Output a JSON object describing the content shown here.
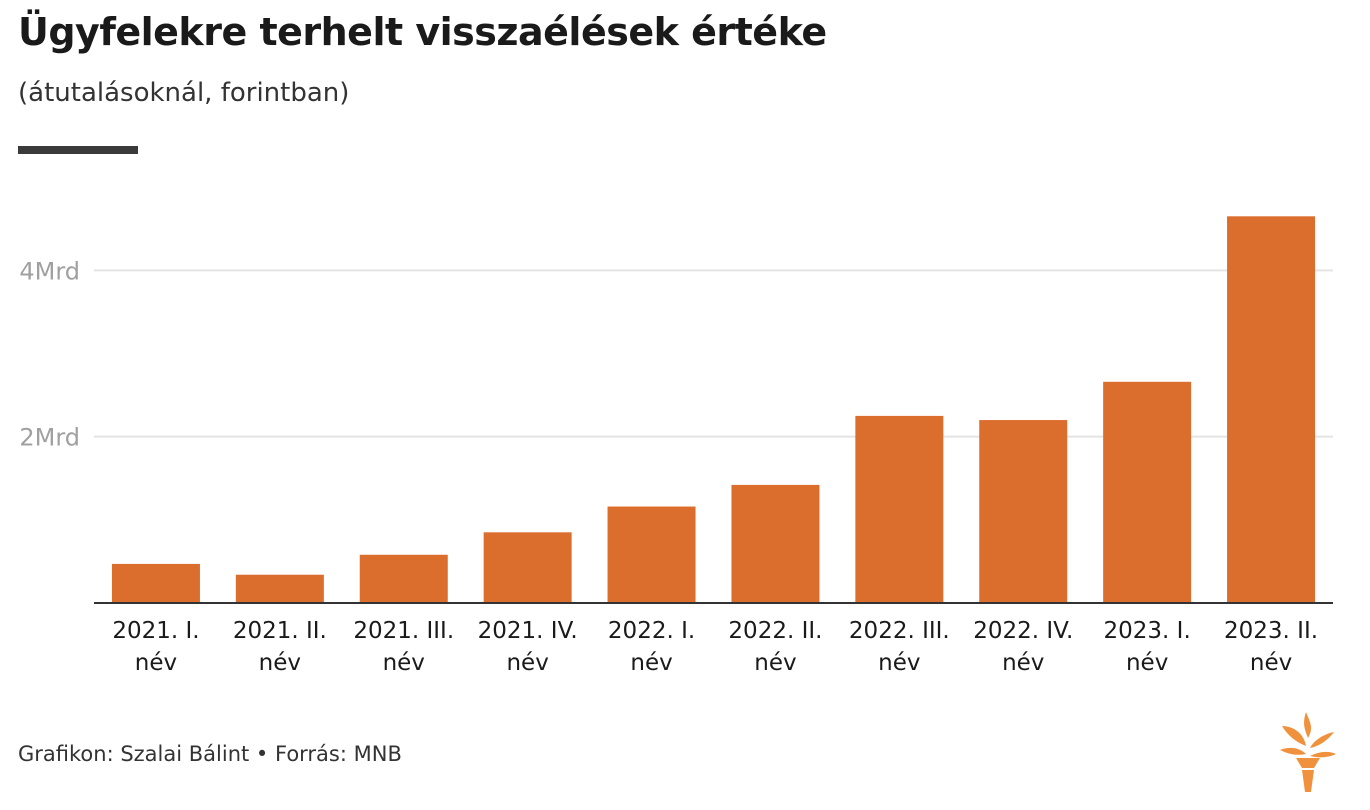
{
  "header": {
    "title": "Ügyfelekre terhelt visszaélések értéke",
    "subtitle": "(átutalásoknál, forintban)"
  },
  "chart_data": {
    "type": "bar",
    "categories": [
      [
        "2021. I.",
        "név"
      ],
      [
        "2021. II.",
        "név"
      ],
      [
        "2021. III.",
        "név"
      ],
      [
        "2021. IV.",
        "név"
      ],
      [
        "2022. I.",
        "név"
      ],
      [
        "2022. II.",
        "név"
      ],
      [
        "2022. III.",
        "név"
      ],
      [
        "2022. IV.",
        "név"
      ],
      [
        "2023. I.",
        "név"
      ],
      [
        "2023. II.",
        "név"
      ]
    ],
    "values": [
      0.47,
      0.34,
      0.58,
      0.85,
      1.16,
      1.42,
      2.25,
      2.2,
      2.66,
      4.65
    ],
    "unit": "Mrd",
    "yticks": [
      {
        "value": 2,
        "label": "2Mrd"
      },
      {
        "value": 4,
        "label": "4Mrd"
      }
    ],
    "ylim": [
      0,
      4.75
    ],
    "grid": true,
    "bar_color": "#db6d2d"
  },
  "footer": {
    "credit": "Grafikon: Szalai Bálint • Forrás: MNB"
  },
  "logo": {
    "icon": "torch-logo-icon",
    "color": "#f0923d"
  }
}
